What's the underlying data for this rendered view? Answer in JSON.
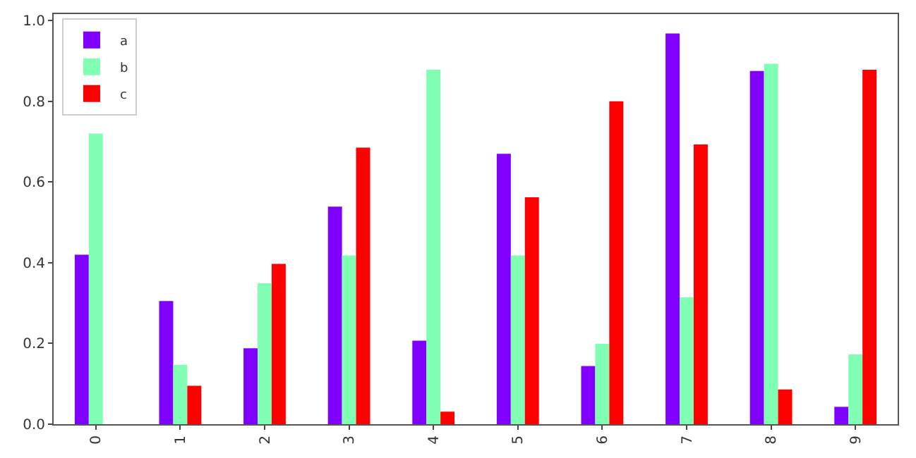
{
  "chart_data": {
    "type": "bar",
    "categories": [
      "0",
      "1",
      "2",
      "3",
      "4",
      "5",
      "6",
      "7",
      "8",
      "9"
    ],
    "series": [
      {
        "name": "a",
        "color": "#8000ff",
        "values": [
          0.42,
          0.305,
          0.188,
          0.539,
          0.207,
          0.67,
          0.144,
          0.968,
          0.875,
          0.043
        ]
      },
      {
        "name": "b",
        "color": "#80ffb4",
        "values": [
          0.72,
          0.147,
          0.349,
          0.418,
          0.878,
          0.418,
          0.199,
          0.314,
          0.893,
          0.173
        ]
      },
      {
        "name": "c",
        "color": "#ff0000",
        "values": [
          0,
          0.095,
          0.397,
          0.685,
          0.031,
          0.562,
          0.8,
          0.693,
          0.086,
          0.878
        ]
      }
    ],
    "ylim": [
      0,
      1.016
    ],
    "yticks": [
      {
        "value": 0,
        "label": "0.0"
      },
      0.2,
      0.4,
      0.6,
      0.8,
      {
        "value": 1,
        "label": "1.0"
      }
    ],
    "legend": "top left"
  }
}
